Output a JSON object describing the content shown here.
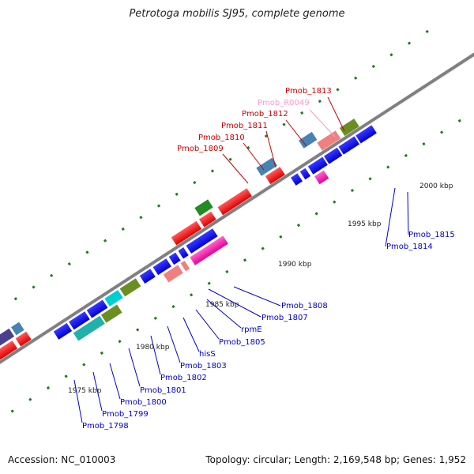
{
  "title": "Petrotoga mobilis SJ95, complete genome",
  "footer": {
    "accession": "Accession: NC_010003",
    "topology": "Topology: circular; Length: 2,169,548 bp; Genes: 1,952"
  },
  "scale_labels": [
    "1975 kbp",
    "1980 kbp",
    "1985 kbp",
    "1990 kbp",
    "1995 kbp",
    "2000 kbp"
  ],
  "gene_labels_top": [
    "Pmob_1813",
    "Pmob_R0049",
    "Pmob_1812",
    "Pmob_1811",
    "Pmob_1810",
    "Pmob_1809"
  ],
  "gene_labels_right": [
    "Pmob_1815",
    "Pmob_1814"
  ],
  "gene_labels_bottom": [
    "Pmob_1808",
    "Pmob_1807",
    "rpmE",
    "Pmob_1805",
    "hisS",
    "Pmob_1803",
    "Pmob_1802",
    "Pmob_1801",
    "Pmob_1800",
    "Pmob_1799",
    "Pmob_1798"
  ],
  "colors": {
    "plus_strand": "#ff0000",
    "minus_strand": "#0000ff",
    "rna": "#ff99cc",
    "backbone": "#808080",
    "dots": "#1a7a1a"
  }
}
